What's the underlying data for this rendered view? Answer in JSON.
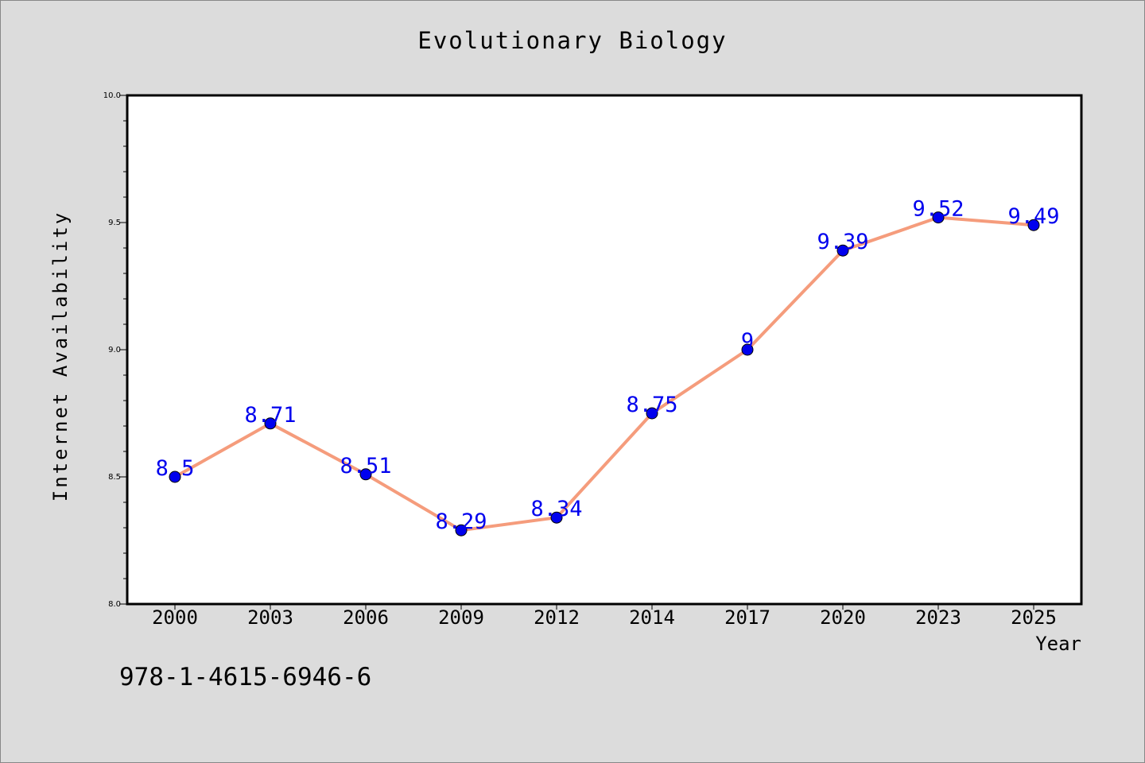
{
  "chart_data": {
    "type": "line",
    "title": "Evolutionary Biology",
    "xlabel": "Year",
    "ylabel": "Internet Availability",
    "categories": [
      "2000",
      "2003",
      "2006",
      "2009",
      "2012",
      "2014",
      "2017",
      "2020",
      "2023",
      "2025"
    ],
    "series": [
      {
        "values": [
          8.5,
          8.71,
          8.51,
          8.29,
          8.34,
          8.75,
          9.0,
          9.39,
          9.52,
          9.49
        ],
        "labels": [
          "8.5",
          "8.71",
          "8.51",
          "8.29",
          "8.34",
          "8.75",
          "9",
          "9.39",
          "9.52",
          "9.49"
        ],
        "line_color": "#f59c7c",
        "marker_color": "#0000ee",
        "label_color": "#0000ee"
      }
    ],
    "ylim": [
      8.0,
      10.0
    ],
    "yticks": [
      "8.0",
      "8.5",
      "9.0",
      "9.5",
      "10.0"
    ],
    "grid": false,
    "legend": "none"
  },
  "annotation": "978-1-4615-6946-6"
}
